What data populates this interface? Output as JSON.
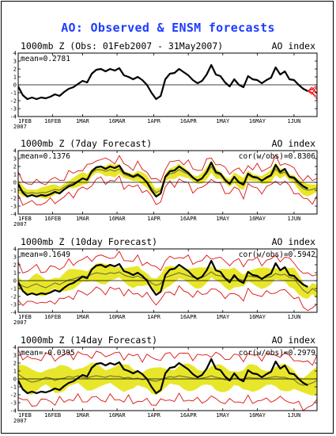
{
  "title": "AO: Observed & ENSM forecasts",
  "colors": {
    "title": "#1e3cff",
    "observed": "#000000",
    "spread_band": "#e8e62a",
    "ensemble_mean": "#7a7a3a",
    "ensemble_range": "#dd1111",
    "forecast_members": "#ee1111"
  },
  "chart_data": [
    {
      "type": "line",
      "header_left": "1000mb Z (Obs: 01Feb2007 - 31May2007)",
      "header_right": "AO index",
      "mean_text": "mean=0.2781",
      "corr_text": "",
      "ylim": [
        -4,
        4
      ],
      "y_ticks": [
        "4",
        "3",
        "2",
        "1",
        "0",
        "-1",
        "-2",
        "-3",
        "-4"
      ],
      "x_ticks": [
        "1FEB",
        "16FEB",
        "1MAR",
        "16MAR",
        "1APR",
        "16APR",
        "1MAY",
        "16MAY",
        "1JUN"
      ],
      "x_year": "2007",
      "observed": [
        -0.2,
        -1.3,
        -1.8,
        -1.6,
        -1.8,
        -1.6,
        -1.7,
        -1.5,
        -1.2,
        -1.4,
        -0.9,
        -0.5,
        -0.3,
        0.1,
        0.5,
        0.3,
        1.4,
        1.9,
        2.0,
        1.7,
        2.0,
        1.8,
        2.1,
        1.2,
        1.0,
        0.7,
        1.0,
        0.6,
        0.0,
        -1.0,
        -1.8,
        -1.4,
        0.7,
        1.4,
        1.5,
        2.0,
        1.6,
        1.2,
        0.6,
        0.2,
        0.5,
        1.3,
        2.5,
        1.3,
        1.1,
        0.3,
        -0.2,
        0.7,
        0.0,
        -0.3,
        1.1,
        0.7,
        0.6,
        0.2,
        0.6,
        0.9,
        2.2,
        1.3,
        1.7,
        0.7,
        0.6,
        0.0,
        -0.5,
        -0.8
      ],
      "forecast_members": [
        [
          -0.8,
          -0.5,
          -1.0,
          -0.6,
          -1.2,
          -0.3,
          0.2
        ],
        [
          -0.8,
          -0.9,
          -1.4,
          -1.5,
          -2.0,
          -1.4,
          -1.6
        ],
        [
          -0.8,
          -1.2,
          -0.4,
          -0.9,
          0.3,
          0.6,
          0.9
        ],
        [
          -0.8,
          -0.3,
          -0.8,
          -1.8,
          -1.2,
          -0.5,
          -1.0
        ],
        [
          -0.8,
          -1.0,
          -1.6,
          -2.3,
          -1.5,
          -2.0,
          -1.3
        ],
        [
          -0.8,
          -0.6,
          -0.2,
          -0.7,
          -0.4,
          0.2,
          0.5
        ]
      ]
    },
    {
      "type": "line",
      "header_left": "1000mb Z (7day Forecast)",
      "header_right": "AO index",
      "mean_text": "mean=0.1376",
      "corr_text": "cor(w/obs)=0.8306",
      "ylim": [
        -4,
        4
      ],
      "y_ticks": [
        "4",
        "3",
        "2",
        "1",
        "0",
        "-1",
        "-2",
        "-3",
        "-4"
      ],
      "x_ticks": [
        "1FEB",
        "16FEB",
        "1MAR",
        "16MAR",
        "1APR",
        "16APR",
        "1MAY",
        "16MAY",
        "1JUN"
      ],
      "x_year": "2007",
      "observed": [
        -0.2,
        -1.3,
        -1.8,
        -1.6,
        -1.8,
        -1.6,
        -1.7,
        -1.5,
        -1.2,
        -1.4,
        -0.9,
        -0.5,
        -0.3,
        0.1,
        0.5,
        0.3,
        1.4,
        1.9,
        2.0,
        1.7,
        2.0,
        1.8,
        2.1,
        1.2,
        1.0,
        0.7,
        1.0,
        0.6,
        0.0,
        -1.0,
        -1.8,
        -1.4,
        0.7,
        1.4,
        1.5,
        2.0,
        1.6,
        1.2,
        0.6,
        0.2,
        0.5,
        1.3,
        2.5,
        1.3,
        1.1,
        0.3,
        -0.2,
        0.7,
        0.0,
        -0.3,
        1.1,
        0.7,
        0.6,
        0.2,
        0.6,
        0.9,
        2.2,
        1.3,
        1.7,
        0.7,
        0.6,
        0.0,
        -0.5,
        -0.8
      ],
      "observed_length": 64,
      "ensemble_mean": [
        -0.5,
        -1.1,
        -1.4,
        -1.3,
        -1.4,
        -1.3,
        -1.3,
        -1.1,
        -0.9,
        -1.0,
        -0.6,
        -0.3,
        -0.1,
        0.2,
        0.5,
        0.4,
        1.2,
        1.6,
        1.6,
        1.4,
        1.6,
        1.4,
        1.7,
        1.0,
        0.8,
        0.6,
        0.8,
        0.5,
        0.1,
        -0.7,
        -1.3,
        -1.0,
        0.6,
        1.1,
        1.2,
        1.6,
        1.3,
        1.0,
        0.5,
        0.3,
        0.5,
        1.1,
        2.0,
        1.1,
        0.9,
        0.3,
        -0.1,
        0.6,
        0.1,
        -0.2,
        0.9,
        0.6,
        0.5,
        0.3,
        0.5,
        0.8,
        1.7,
        1.1,
        1.3,
        0.6,
        0.4,
        -0.3,
        -0.8,
        -1.0,
        -0.9,
        -0.7,
        -1.1
      ],
      "spread": 0.6,
      "range": 1.3
    },
    {
      "type": "line",
      "header_left": "1000mb Z (10day Forecast)",
      "header_right": "AO index",
      "mean_text": "mean=0.1649",
      "corr_text": "cor(w/obs)=0.5942",
      "ylim": [
        -4,
        4
      ],
      "y_ticks": [
        "4",
        "3",
        "2",
        "1",
        "0",
        "-1",
        "-2",
        "-3",
        "-4"
      ],
      "x_ticks": [
        "1FEB",
        "16FEB",
        "1MAR",
        "16MAR",
        "1APR",
        "16APR",
        "1MAY",
        "16MAY",
        "1JUN"
      ],
      "x_year": "2007",
      "observed": [
        -0.2,
        -1.3,
        -1.8,
        -1.6,
        -1.8,
        -1.6,
        -1.7,
        -1.5,
        -1.2,
        -1.4,
        -0.9,
        -0.5,
        -0.3,
        0.1,
        0.5,
        0.3,
        1.4,
        1.9,
        2.0,
        1.7,
        2.0,
        1.8,
        2.1,
        1.2,
        1.0,
        0.7,
        1.0,
        0.6,
        0.0,
        -1.0,
        -1.8,
        -1.4,
        0.7,
        1.4,
        1.5,
        2.0,
        1.6,
        1.2,
        0.6,
        0.2,
        0.5,
        1.3,
        2.5,
        1.3,
        1.1,
        0.3,
        -0.2,
        0.7,
        0.0,
        -0.3,
        1.1,
        0.7,
        0.6,
        0.2,
        0.6,
        0.9,
        2.2,
        1.3,
        1.7,
        0.7,
        0.6,
        0.0,
        -0.5,
        -0.8
      ],
      "observed_length": 64,
      "ensemble_mean": [
        -0.3,
        -0.7,
        -0.9,
        -0.6,
        -0.4,
        -0.7,
        -0.9,
        -0.6,
        -0.3,
        -0.5,
        -0.2,
        0.1,
        0.2,
        0.4,
        0.6,
        0.5,
        0.8,
        1.0,
        0.9,
        0.8,
        1.0,
        0.9,
        1.1,
        0.7,
        0.5,
        0.4,
        0.6,
        0.3,
        0.2,
        -0.3,
        -0.6,
        -0.4,
        0.4,
        0.6,
        0.8,
        1.0,
        0.8,
        0.6,
        0.4,
        0.3,
        0.4,
        0.7,
        1.1,
        0.7,
        0.6,
        0.3,
        0.1,
        0.4,
        0.2,
        0.0,
        0.6,
        0.5,
        0.4,
        0.3,
        0.4,
        0.5,
        0.9,
        0.7,
        0.8,
        0.4,
        0.3,
        -0.5,
        -1.2,
        -1.6,
        -1.0,
        -1.4,
        -1.8
      ],
      "spread": 1.0,
      "range": 2.1
    },
    {
      "type": "line",
      "header_left": "1000mb Z (14day Forecast)",
      "header_right": "AO index",
      "mean_text": "mean=-0.0395",
      "corr_text": "cor(w/obs)=0.2979",
      "ylim": [
        -4,
        4
      ],
      "y_ticks": [
        "4",
        "3",
        "2",
        "1",
        "0",
        "-1",
        "-2",
        "-3",
        "-4"
      ],
      "x_ticks": [
        "1FEB",
        "16FEB",
        "1MAR",
        "16MAR",
        "1APR",
        "16APR",
        "1MAY",
        "16MAY",
        "1JUN"
      ],
      "x_year": "2007",
      "observed": [
        -0.2,
        -1.3,
        -1.8,
        -1.6,
        -1.8,
        -1.6,
        -1.7,
        -1.5,
        -1.2,
        -1.4,
        -0.9,
        -0.5,
        -0.3,
        0.1,
        0.5,
        0.3,
        1.4,
        1.9,
        2.0,
        1.7,
        2.0,
        1.8,
        2.1,
        1.2,
        1.0,
        0.7,
        1.0,
        0.6,
        0.0,
        -1.0,
        -1.8,
        -1.4,
        0.7,
        1.4,
        1.5,
        2.0,
        1.6,
        1.2,
        0.6,
        0.2,
        0.5,
        1.3,
        2.5,
        1.3,
        1.1,
        0.3,
        -0.2,
        0.7,
        0.0,
        -0.3,
        1.1,
        0.7,
        0.6,
        0.2,
        0.6,
        0.9,
        2.2,
        1.3,
        1.7,
        0.7,
        0.6,
        0.0,
        -0.5,
        -0.8
      ],
      "observed_length": 64,
      "ensemble_mean": [
        0.6,
        0.2,
        -0.2,
        -0.4,
        -0.3,
        -0.1,
        0.2,
        0.1,
        -0.2,
        0.0,
        0.1,
        0.3,
        0.2,
        0.4,
        0.2,
        0.1,
        0.3,
        0.4,
        0.3,
        0.2,
        0.4,
        0.3,
        0.3,
        0.1,
        0.2,
        0.0,
        0.1,
        -0.1,
        0.0,
        -0.2,
        -0.3,
        -0.1,
        0.1,
        0.3,
        0.2,
        0.4,
        0.3,
        0.2,
        0.1,
        0.0,
        0.1,
        0.2,
        0.4,
        0.2,
        0.1,
        -0.1,
        -0.2,
        0.1,
        0.0,
        -0.1,
        0.2,
        0.1,
        0.1,
        0.0,
        0.1,
        0.2,
        0.3,
        0.2,
        0.2,
        0.0,
        -0.1,
        -0.6,
        -0.8,
        -0.7,
        -0.5,
        -0.2,
        -0.4
      ],
      "spread": 1.3,
      "range": 2.8
    }
  ]
}
